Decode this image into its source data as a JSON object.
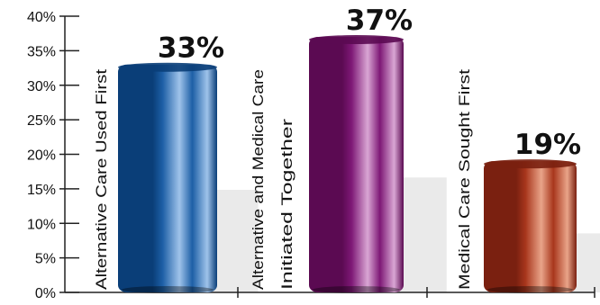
{
  "chart_data": {
    "type": "bar",
    "categories": [
      [
        "Alternative Care Used First"
      ],
      [
        "Alternative and Medical Care",
        "Initiated Together"
      ],
      [
        "Medical Care Sought First"
      ]
    ],
    "values": [
      33,
      37,
      19
    ],
    "value_labels": [
      "33%",
      "37%",
      "19%"
    ],
    "y_ticks": [
      "0%",
      "5%",
      "10%",
      "15%",
      "20%",
      "25%",
      "30%",
      "35%",
      "40%"
    ],
    "ylim": [
      0,
      40
    ],
    "title": "",
    "xlabel": "",
    "ylabel": "",
    "grid": false,
    "colors": {
      "bar1_dark": "#0a3e78",
      "bar1_mid": "#1d5fa6",
      "bar1_light": "#9fc3ea",
      "bar2_dark": "#5b0a52",
      "bar2_mid": "#7e1876",
      "bar2_light": "#d9a6d4",
      "bar3_dark": "#7a2010",
      "bar3_mid": "#a8361c",
      "bar3_light": "#e9a489",
      "shadow": "#d8d8d8"
    }
  }
}
